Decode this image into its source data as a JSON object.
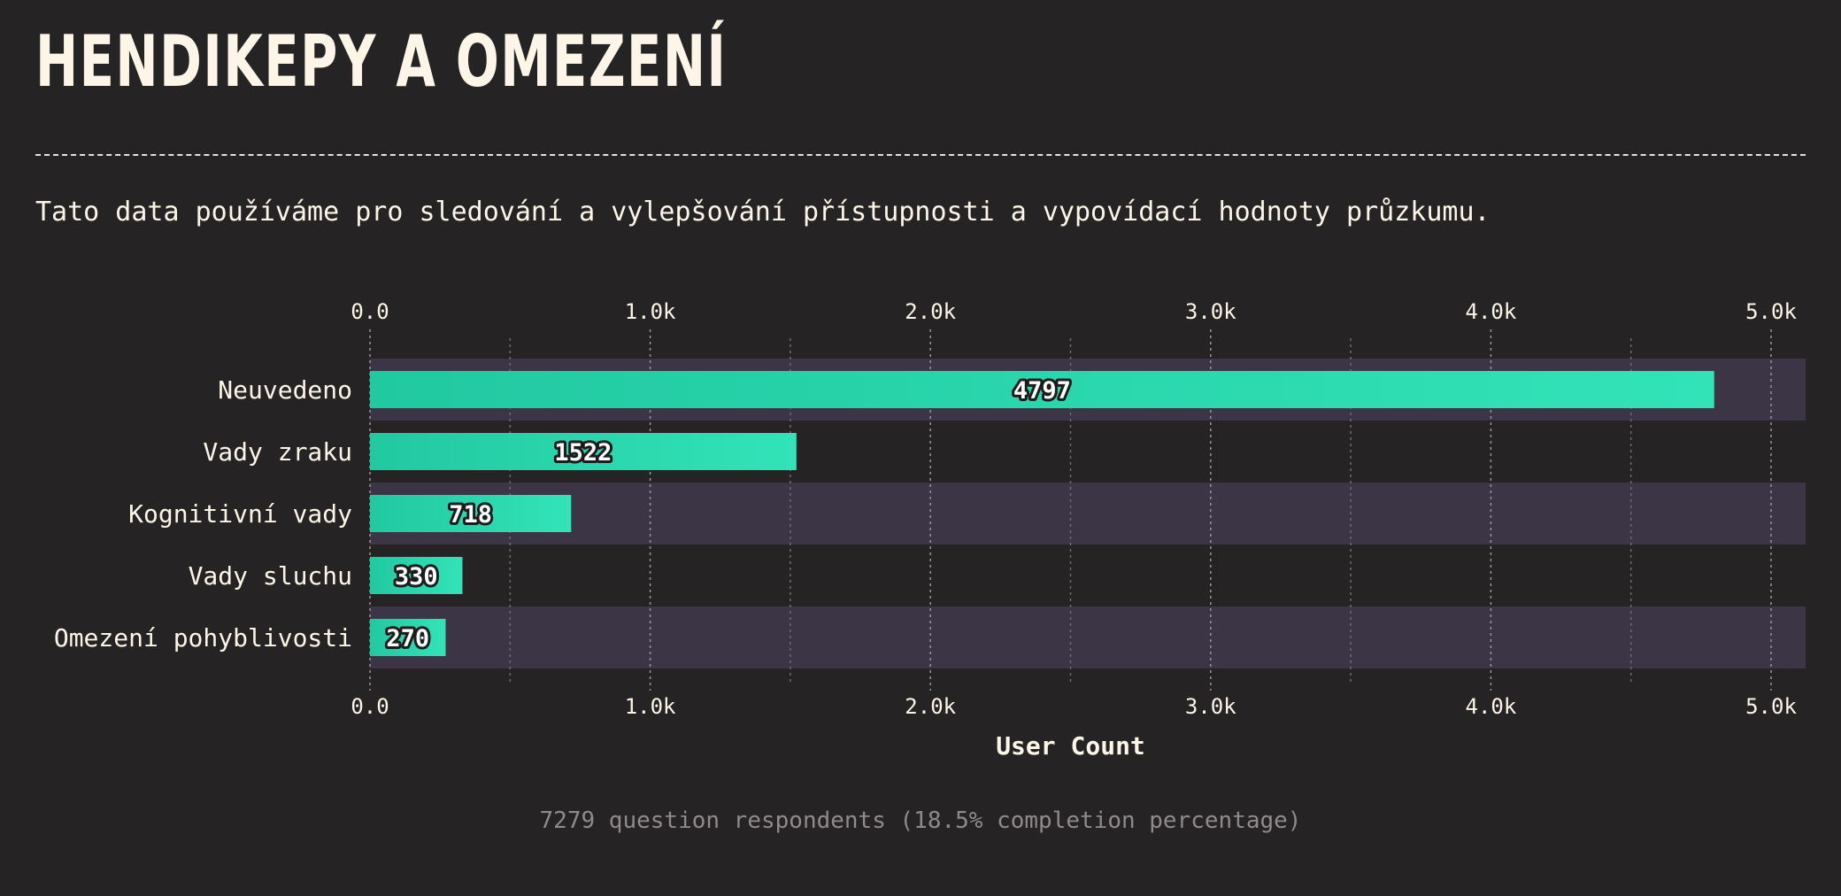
{
  "header": {
    "title": "HENDIKEPY A OMEZENÍ",
    "description": "Tato data používáme pro sledování a vylepšování přístupnosti a vypovídací hodnoty průzkumu."
  },
  "footer": {
    "note": "7279 question respondents (18.5% completion percentage)"
  },
  "colors": {
    "background": "#262324",
    "bar": "#2fdcb2",
    "bar_dark": "#21c9a1",
    "row_band": "#3b3545",
    "text": "#fdf6e8",
    "grid": "#8c8689"
  },
  "chart_data": {
    "type": "bar",
    "orientation": "horizontal",
    "categories": [
      "Neuvedeno",
      "Vady zraku",
      "Kognitivní vady",
      "Vady sluchu",
      "Omezení pohyblivosti"
    ],
    "values": [
      4797,
      1522,
      718,
      330,
      270
    ],
    "xlabel": "User Count",
    "ylabel": "",
    "xlim": [
      0,
      5000
    ],
    "ticks": [
      0,
      1000,
      2000,
      3000,
      4000,
      5000
    ],
    "tick_labels": [
      "0.0",
      "1.0k",
      "2.0k",
      "3.0k",
      "4.0k",
      "5.0k"
    ],
    "grid": true,
    "data_labels": true
  }
}
